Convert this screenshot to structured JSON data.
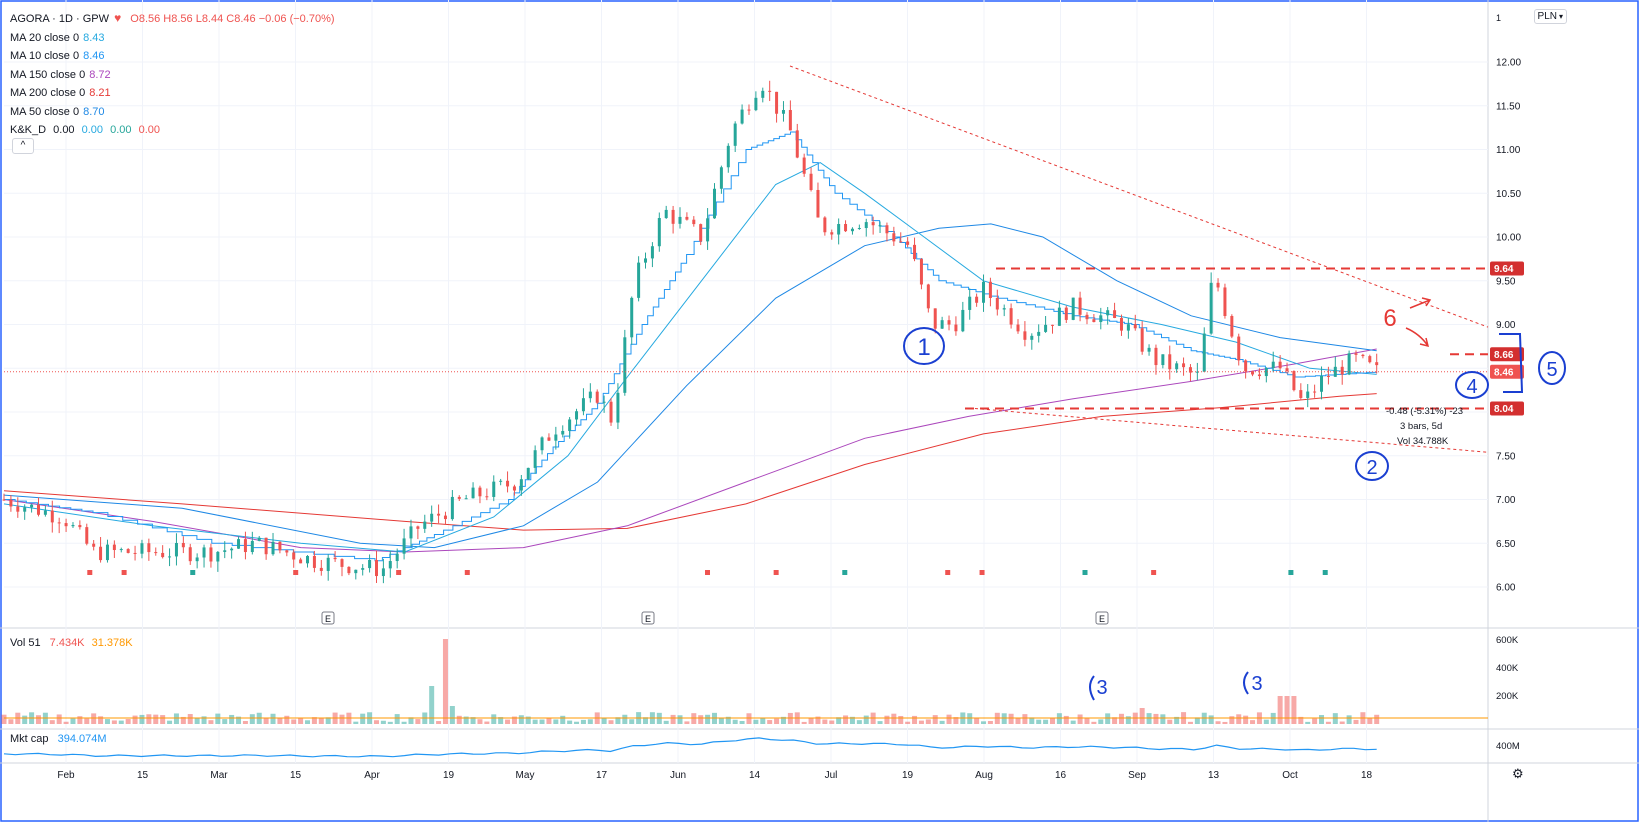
{
  "header": {
    "symbol": "AGORA · 1D · GPW",
    "ohlc": "O8.56 H8.56 L8.44 C8.46 −0.06 (−0.70%)",
    "heart_icon": "heart-icon"
  },
  "indicators": [
    {
      "label": "MA 20 close 0",
      "value": "8.43",
      "color": "#26a9e0"
    },
    {
      "label": "MA 10 close 0",
      "value": "8.46",
      "color": "#2196f3"
    },
    {
      "label": "MA 150 close 0",
      "value": "8.72",
      "color": "#ab47bc"
    },
    {
      "label": "MA 200 close 0",
      "value": "8.21",
      "color": "#e53935"
    },
    {
      "label": "MA 50 close 0",
      "value": "8.70",
      "color": "#1e88e5"
    },
    {
      "label": "K&K_D",
      "values": [
        "0.00",
        "0.00",
        "0.00",
        "0.00"
      ],
      "colors": [
        "#131722",
        "#26a9e0",
        "#26a69a",
        "#ef5350"
      ]
    }
  ],
  "currency_button": "PLN",
  "scale_mode": "1",
  "volume_pane": {
    "title": "Vol 51",
    "v1": "7.434K",
    "v2": "31.378K",
    "ticks": [
      "600K",
      "400K",
      "200K"
    ]
  },
  "mktcap_pane": {
    "title": "Mkt cap",
    "value": "394.074M",
    "ticks": [
      "400M"
    ]
  },
  "collapse_label": "^",
  "earnings_marker": "E",
  "annotations": {
    "n1": "1",
    "n2": "2",
    "n3a": "3",
    "n3b": "3",
    "n4": "4",
    "n5": "5",
    "n6": "6",
    "measure_lines": [
      "-0.48 (-5.31%) -23",
      "3 bars, 5d",
      "Vol 34.788K"
    ]
  },
  "settings_icon": "gear-icon",
  "colors": {
    "up": "#26a69a",
    "down": "#ef5350",
    "ma20": "#26a9e0",
    "ma10": "#2196f3",
    "ma150": "#ab47bc",
    "ma200": "#e53935",
    "ma50": "#1e88e5",
    "annot": "#1a3fd1",
    "annot_red": "#e53935"
  },
  "chart_data": {
    "type": "candlestick",
    "title": "AGORA · 1D · GPW",
    "y_ticks": [
      "12.00",
      "11.50",
      "11.00",
      "10.50",
      "10.00",
      "9.50",
      "9.00",
      "8.50",
      "8.00",
      "7.50",
      "7.00",
      "6.50",
      "6.00"
    ],
    "ylim": [
      5.6,
      12.5
    ],
    "x_ticks": [
      "Feb",
      "15",
      "Mar",
      "15",
      "Apr",
      "19",
      "May",
      "17",
      "Jun",
      "14",
      "Jul",
      "19",
      "Aug",
      "16",
      "Sep",
      "13",
      "Oct",
      "18"
    ],
    "price_labels": [
      "9.64",
      "8.66",
      "8.46",
      "8.04"
    ],
    "close_path": [
      {
        "t": 0,
        "p": 7.0
      },
      {
        "t": 0.04,
        "p": 6.8
      },
      {
        "t": 0.06,
        "p": 6.4
      },
      {
        "t": 0.09,
        "p": 6.4
      },
      {
        "t": 0.14,
        "p": 6.4
      },
      {
        "t": 0.17,
        "p": 6.5
      },
      {
        "t": 0.21,
        "p": 6.3
      },
      {
        "t": 0.255,
        "p": 6.2
      },
      {
        "t": 0.28,
        "p": 6.7
      },
      {
        "t": 0.31,
        "p": 7.0
      },
      {
        "t": 0.345,
        "p": 7.2
      },
      {
        "t": 0.37,
        "p": 7.8
      },
      {
        "t": 0.4,
        "p": 8.2
      },
      {
        "t": 0.41,
        "p": 7.9
      },
      {
        "t": 0.425,
        "p": 9.5
      },
      {
        "t": 0.445,
        "p": 10.3
      },
      {
        "t": 0.47,
        "p": 10.0
      },
      {
        "t": 0.49,
        "p": 11.2
      },
      {
        "t": 0.51,
        "p": 11.8
      },
      {
        "t": 0.53,
        "p": 11.2
      },
      {
        "t": 0.55,
        "p": 10.1
      },
      {
        "t": 0.58,
        "p": 10.2
      },
      {
        "t": 0.61,
        "p": 9.9
      },
      {
        "t": 0.625,
        "p": 9.0
      },
      {
        "t": 0.64,
        "p": 9.0
      },
      {
        "t": 0.66,
        "p": 9.4
      },
      {
        "t": 0.69,
        "p": 8.9
      },
      {
        "t": 0.72,
        "p": 9.2
      },
      {
        "t": 0.755,
        "p": 9.0
      },
      {
        "t": 0.775,
        "p": 8.6
      },
      {
        "t": 0.805,
        "p": 8.4
      },
      {
        "t": 0.815,
        "p": 9.6
      },
      {
        "t": 0.835,
        "p": 8.5
      },
      {
        "t": 0.86,
        "p": 8.5
      },
      {
        "t": 0.875,
        "p": 8.1
      },
      {
        "t": 0.89,
        "p": 8.4
      },
      {
        "t": 0.91,
        "p": 8.6
      },
      {
        "t": 0.925,
        "p": 8.46
      }
    ],
    "ma_series": {
      "ma10": [
        [
          0,
          7.0
        ],
        [
          0.06,
          6.85
        ],
        [
          0.14,
          6.5
        ],
        [
          0.25,
          6.3
        ],
        [
          0.29,
          6.6
        ],
        [
          0.34,
          7.0
        ],
        [
          0.37,
          7.6
        ],
        [
          0.4,
          8.1
        ],
        [
          0.43,
          9.0
        ],
        [
          0.46,
          9.8
        ],
        [
          0.5,
          11.0
        ],
        [
          0.53,
          11.2
        ],
        [
          0.56,
          10.5
        ],
        [
          0.6,
          10.0
        ],
        [
          0.63,
          9.5
        ],
        [
          0.67,
          9.3
        ],
        [
          0.72,
          9.1
        ],
        [
          0.76,
          9.0
        ],
        [
          0.8,
          8.7
        ],
        [
          0.83,
          8.6
        ],
        [
          0.87,
          8.4
        ],
        [
          0.925,
          8.46
        ]
      ],
      "ma20": [
        [
          0,
          6.95
        ],
        [
          0.1,
          6.7
        ],
        [
          0.2,
          6.5
        ],
        [
          0.27,
          6.4
        ],
        [
          0.33,
          6.8
        ],
        [
          0.38,
          7.5
        ],
        [
          0.42,
          8.4
        ],
        [
          0.47,
          9.5
        ],
        [
          0.52,
          10.6
        ],
        [
          0.55,
          10.85
        ],
        [
          0.58,
          10.5
        ],
        [
          0.62,
          10.0
        ],
        [
          0.66,
          9.5
        ],
        [
          0.72,
          9.2
        ],
        [
          0.78,
          9.0
        ],
        [
          0.83,
          8.8
        ],
        [
          0.88,
          8.5
        ],
        [
          0.925,
          8.43
        ]
      ],
      "ma50": [
        [
          0,
          7.05
        ],
        [
          0.12,
          6.9
        ],
        [
          0.24,
          6.5
        ],
        [
          0.29,
          6.45
        ],
        [
          0.35,
          6.7
        ],
        [
          0.4,
          7.2
        ],
        [
          0.46,
          8.3
        ],
        [
          0.52,
          9.3
        ],
        [
          0.58,
          9.9
        ],
        [
          0.63,
          10.1
        ],
        [
          0.665,
          10.15
        ],
        [
          0.7,
          10.0
        ],
        [
          0.75,
          9.5
        ],
        [
          0.8,
          9.1
        ],
        [
          0.86,
          8.85
        ],
        [
          0.925,
          8.7
        ]
      ],
      "ma150": [
        [
          0,
          7.0
        ],
        [
          0.1,
          6.75
        ],
        [
          0.2,
          6.45
        ],
        [
          0.27,
          6.4
        ],
        [
          0.35,
          6.45
        ],
        [
          0.42,
          6.7
        ],
        [
          0.5,
          7.2
        ],
        [
          0.58,
          7.7
        ],
        [
          0.65,
          7.95
        ],
        [
          0.72,
          8.15
        ],
        [
          0.8,
          8.35
        ],
        [
          0.87,
          8.55
        ],
        [
          0.925,
          8.72
        ]
      ],
      "ma200": [
        [
          0,
          7.1
        ],
        [
          0.12,
          6.95
        ],
        [
          0.27,
          6.75
        ],
        [
          0.35,
          6.65
        ],
        [
          0.42,
          6.67
        ],
        [
          0.5,
          6.95
        ],
        [
          0.58,
          7.4
        ],
        [
          0.66,
          7.75
        ],
        [
          0.74,
          7.95
        ],
        [
          0.82,
          8.05
        ],
        [
          0.9,
          8.18
        ],
        [
          0.925,
          8.21
        ]
      ]
    }
  }
}
